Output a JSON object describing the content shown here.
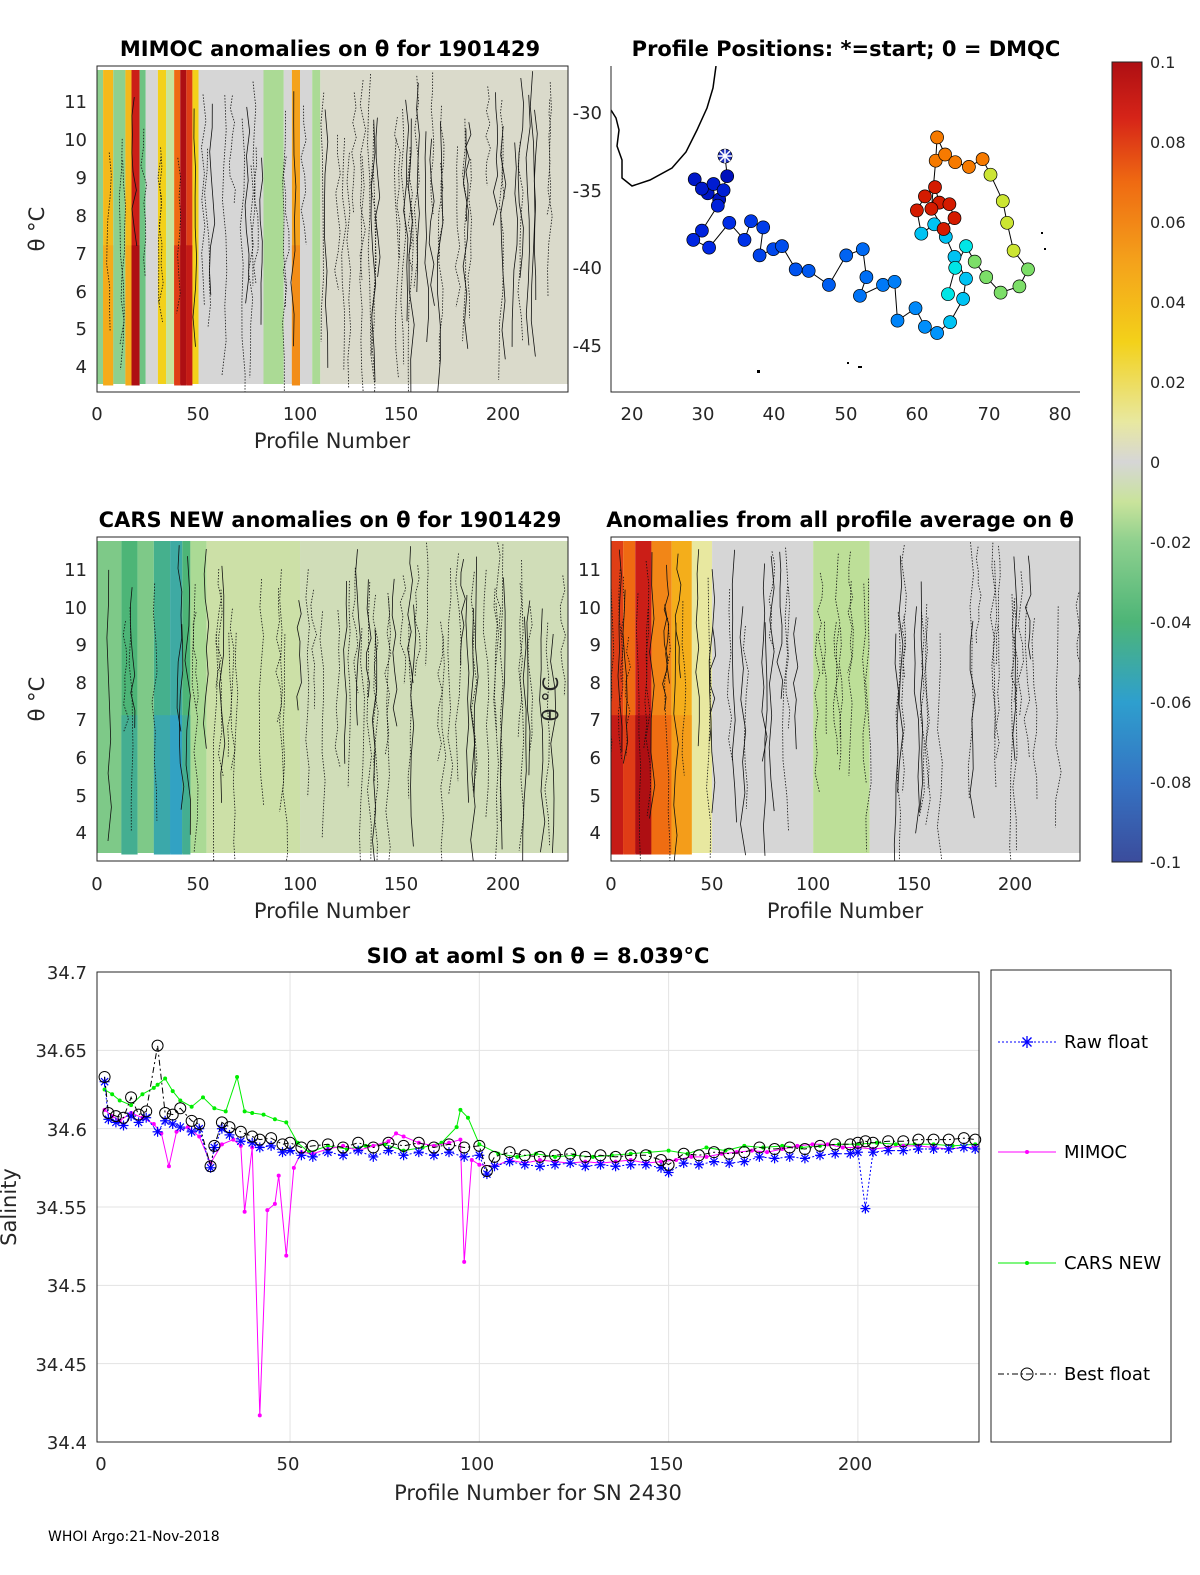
{
  "footer": "WHOI Argo:21-Nov-2018",
  "colorbar": {
    "ticks": [
      "0.1",
      "0.08",
      "0.06",
      "0.04",
      "0.02",
      "0",
      "-0.02",
      "-0.04",
      "-0.06",
      "-0.08",
      "-0.1"
    ],
    "range": [
      -0.1,
      0.1
    ]
  },
  "chart_data": [
    {
      "id": "mimoc",
      "type": "heatmap",
      "title": "MIMOC anomalies on θ  for 1901429",
      "xlabel": "Profile Number",
      "ylabel": "θ °C",
      "xlim": [
        0,
        232
      ],
      "ylim": [
        3.2,
        11.8
      ],
      "xticks": [
        "0",
        "50",
        "100",
        "150",
        "200"
      ],
      "yticks": [
        "4",
        "5",
        "6",
        "7",
        "8",
        "9",
        "10",
        "11"
      ],
      "bands": [
        {
          "x0": 0,
          "x1": 3,
          "v": -0.02
        },
        {
          "x0": 3,
          "x1": 8,
          "v": 0.04
        },
        {
          "x0": 8,
          "x1": 14,
          "v": -0.02
        },
        {
          "x0": 14,
          "x1": 17,
          "v": 0.04
        },
        {
          "x0": 17,
          "x1": 21,
          "v": 0.09
        },
        {
          "x0": 21,
          "x1": 24,
          "v": -0.03
        },
        {
          "x0": 24,
          "x1": 30,
          "v": 0.0
        },
        {
          "x0": 30,
          "x1": 34,
          "v": 0.03
        },
        {
          "x0": 34,
          "x1": 38,
          "v": -0.01
        },
        {
          "x0": 38,
          "x1": 41,
          "v": 0.07
        },
        {
          "x0": 41,
          "x1": 44,
          "v": 0.1
        },
        {
          "x0": 44,
          "x1": 47,
          "v": 0.08
        },
        {
          "x0": 47,
          "x1": 50,
          "v": 0.03
        },
        {
          "x0": 50,
          "x1": 82,
          "v": 0.0
        },
        {
          "x0": 82,
          "x1": 92,
          "v": -0.015
        },
        {
          "x0": 92,
          "x1": 96,
          "v": 0.0
        },
        {
          "x0": 96,
          "x1": 100,
          "v": 0.05
        },
        {
          "x0": 100,
          "x1": 106,
          "v": 0.0
        },
        {
          "x0": 106,
          "x1": 110,
          "v": -0.015
        },
        {
          "x0": 110,
          "x1": 232,
          "v": 0.002
        }
      ]
    },
    {
      "id": "positions",
      "type": "scatter",
      "title": "Profile Positions: *=start; 0 = DMQC",
      "xlim": [
        17,
        82
      ],
      "ylim": [
        -48,
        -27
      ],
      "xticks": [
        "20",
        "30",
        "40",
        "50",
        "60",
        "70",
        "80"
      ],
      "yticks": [
        "-30",
        "-35",
        "-40",
        "-45"
      ],
      "start": [
        32.8,
        -32.8
      ],
      "points": [
        [
          32.8,
          -32.8
        ],
        [
          33.1,
          -34.1
        ],
        [
          32.0,
          -35.6
        ],
        [
          30.4,
          -35.2
        ],
        [
          28.6,
          -34.3
        ],
        [
          29.6,
          -34.9
        ],
        [
          31.2,
          -34.6
        ],
        [
          32.6,
          -35.0
        ],
        [
          31.8,
          -36.0
        ],
        [
          29.6,
          -37.6
        ],
        [
          28.4,
          -38.2
        ],
        [
          30.6,
          -38.7
        ],
        [
          33.4,
          -37.1
        ],
        [
          35.5,
          -38.2
        ],
        [
          36.4,
          -37.0
        ],
        [
          38.1,
          -37.4
        ],
        [
          37.6,
          -39.2
        ],
        [
          39.5,
          -38.8
        ],
        [
          40.7,
          -38.6
        ],
        [
          42.6,
          -40.1
        ],
        [
          44.4,
          -40.2
        ],
        [
          47.2,
          -41.1
        ],
        [
          49.6,
          -39.2
        ],
        [
          51.9,
          -38.8
        ],
        [
          52.4,
          -40.6
        ],
        [
          51.5,
          -41.8
        ],
        [
          54.7,
          -41.1
        ],
        [
          56.3,
          -40.9
        ],
        [
          56.7,
          -43.4
        ],
        [
          59.2,
          -42.6
        ],
        [
          60.5,
          -43.8
        ],
        [
          62.2,
          -44.2
        ],
        [
          64.0,
          -43.5
        ],
        [
          65.8,
          -42.0
        ],
        [
          66.2,
          -40.7
        ],
        [
          64.6,
          -39.3
        ],
        [
          63.4,
          -38.0
        ],
        [
          61.8,
          -37.2
        ],
        [
          60.0,
          -37.8
        ],
        [
          59.4,
          -36.3
        ],
        [
          60.5,
          -35.4
        ],
        [
          61.9,
          -34.8
        ],
        [
          62.5,
          -35.8
        ],
        [
          63.9,
          -35.9
        ],
        [
          64.6,
          -36.8
        ],
        [
          63.1,
          -37.5
        ],
        [
          61.4,
          -36.2
        ],
        [
          62.0,
          -33.1
        ],
        [
          62.2,
          -31.6
        ],
        [
          63.3,
          -32.7
        ],
        [
          64.7,
          -33.2
        ],
        [
          66.6,
          -33.5
        ],
        [
          68.5,
          -33.0
        ],
        [
          69.6,
          -34.0
        ],
        [
          71.3,
          -35.7
        ],
        [
          71.9,
          -37.1
        ],
        [
          72.8,
          -38.9
        ],
        [
          74.8,
          -40.1
        ],
        [
          73.6,
          -41.2
        ],
        [
          71.0,
          -41.6
        ],
        [
          69.0,
          -40.6
        ],
        [
          67.4,
          -39.6
        ],
        [
          66.2,
          -38.6
        ],
        [
          64.7,
          -40.0
        ],
        [
          63.7,
          -41.7
        ]
      ]
    },
    {
      "id": "cars",
      "type": "heatmap",
      "title": "CARS NEW anomalies on θ for 1901429",
      "xlabel": "Profile Number",
      "ylabel": "θ °C",
      "xlim": [
        0,
        232
      ],
      "ylim": [
        3.2,
        11.8
      ],
      "xticks": [
        "0",
        "50",
        "100",
        "150",
        "200"
      ],
      "yticks": [
        "4",
        "5",
        "6",
        "7",
        "8",
        "9",
        "10",
        "11"
      ],
      "bands": [
        {
          "x0": 0,
          "x1": 12,
          "v": -0.025
        },
        {
          "x0": 12,
          "x1": 20,
          "v": -0.04
        },
        {
          "x0": 20,
          "x1": 28,
          "v": -0.025
        },
        {
          "x0": 28,
          "x1": 36,
          "v": -0.045
        },
        {
          "x0": 36,
          "x1": 42,
          "v": -0.05
        },
        {
          "x0": 42,
          "x1": 46,
          "v": -0.04
        },
        {
          "x0": 46,
          "x1": 54,
          "v": -0.015
        },
        {
          "x0": 54,
          "x1": 100,
          "v": -0.008
        },
        {
          "x0": 100,
          "x1": 232,
          "v": -0.005
        }
      ]
    },
    {
      "id": "allavg",
      "type": "heatmap",
      "title": "Anomalies from all profile average on θ",
      "xlabel": "Profile Number",
      "ylabel": "θ °C",
      "xlim": [
        0,
        232
      ],
      "ylim": [
        3.2,
        11.8
      ],
      "xticks": [
        "0",
        "50",
        "100",
        "150",
        "200"
      ],
      "yticks": [
        "4",
        "5",
        "6",
        "7",
        "8",
        "9",
        "10",
        "11"
      ],
      "bands": [
        {
          "x0": 0,
          "x1": 6,
          "v": 0.08
        },
        {
          "x0": 6,
          "x1": 12,
          "v": 0.07
        },
        {
          "x0": 12,
          "x1": 20,
          "v": 0.09
        },
        {
          "x0": 20,
          "x1": 30,
          "v": 0.06
        },
        {
          "x0": 30,
          "x1": 40,
          "v": 0.045
        },
        {
          "x0": 40,
          "x1": 50,
          "v": 0.01
        },
        {
          "x0": 50,
          "x1": 100,
          "v": 0.0
        },
        {
          "x0": 100,
          "x1": 128,
          "v": -0.012
        },
        {
          "x0": 128,
          "x1": 232,
          "v": 0.0
        }
      ]
    },
    {
      "id": "salinity",
      "type": "line",
      "title": "SIO at aoml S on θ = 8.039°C",
      "xlabel": "Profile Number for SN 2430",
      "ylabel": "Salinity",
      "xlim": [
        -1,
        232
      ],
      "ylim": [
        34.4,
        34.7
      ],
      "xticks": [
        "0",
        "50",
        "100",
        "150",
        "200"
      ],
      "yticks": [
        "34.7",
        "34.65",
        "34.6",
        "34.55",
        "34.5",
        "34.45",
        "34.4"
      ],
      "legend": [
        "Raw float",
        "MIMOC",
        "CARS NEW",
        "Best float"
      ],
      "series": [
        {
          "name": "Raw float",
          "x": [
            1,
            2,
            4,
            6,
            8,
            10,
            12,
            15,
            17,
            19,
            21,
            24,
            26,
            29,
            30,
            32,
            34,
            37,
            40,
            42,
            45,
            48,
            50,
            53,
            56,
            60,
            64,
            68,
            72,
            76,
            80,
            84,
            88,
            92,
            96,
            100,
            102,
            104,
            108,
            112,
            116,
            120,
            124,
            128,
            132,
            136,
            140,
            144,
            148,
            150,
            154,
            158,
            162,
            166,
            170,
            174,
            178,
            182,
            186,
            190,
            194,
            198,
            200,
            202,
            204,
            208,
            212,
            216,
            220,
            224,
            228,
            231
          ],
          "y": [
            34.63,
            34.606,
            34.604,
            34.602,
            34.608,
            34.604,
            34.607,
            34.598,
            34.605,
            34.603,
            34.601,
            34.598,
            34.6,
            34.575,
            34.588,
            34.6,
            34.596,
            34.592,
            34.591,
            34.588,
            34.589,
            34.585,
            34.586,
            34.583,
            34.582,
            34.585,
            34.583,
            34.586,
            34.582,
            34.586,
            34.583,
            34.585,
            34.583,
            34.585,
            34.582,
            34.583,
            34.571,
            34.576,
            34.579,
            34.577,
            34.576,
            34.577,
            34.578,
            34.576,
            34.577,
            34.576,
            34.577,
            34.577,
            34.575,
            34.572,
            34.578,
            34.577,
            34.579,
            34.578,
            34.579,
            34.582,
            34.581,
            34.582,
            34.581,
            34.583,
            34.584,
            34.584,
            34.585,
            34.549,
            34.585,
            34.586,
            34.586,
            34.587,
            34.587,
            34.587,
            34.588,
            34.587
          ]
        },
        {
          "name": "MIMOC",
          "x": [
            1,
            3,
            5,
            8,
            11,
            14,
            16,
            18,
            20,
            23,
            26,
            29,
            32,
            35,
            37,
            38,
            40,
            42,
            44,
            46,
            47,
            49,
            51,
            53,
            56,
            60,
            64,
            68,
            72,
            76,
            78,
            80,
            84,
            88,
            92,
            95,
            96,
            98,
            100,
            104,
            108,
            112,
            116,
            120,
            124,
            128,
            132,
            136,
            140,
            144,
            148,
            152,
            156,
            160,
            164,
            168,
            172,
            176,
            180,
            184,
            188,
            192,
            196,
            200,
            204,
            208,
            212,
            216,
            220,
            224,
            228,
            231
          ],
          "y": [
            34.612,
            34.608,
            34.605,
            34.61,
            34.607,
            34.603,
            34.597,
            34.576,
            34.598,
            34.601,
            34.595,
            34.578,
            34.59,
            34.593,
            34.589,
            34.547,
            34.588,
            34.417,
            34.548,
            34.552,
            34.57,
            34.519,
            34.575,
            34.585,
            34.584,
            34.587,
            34.589,
            34.586,
            34.589,
            34.592,
            34.597,
            34.595,
            34.591,
            34.589,
            34.591,
            34.593,
            34.515,
            34.58,
            34.577,
            34.576,
            34.58,
            34.578,
            34.58,
            34.579,
            34.578,
            34.579,
            34.578,
            34.579,
            34.58,
            34.578,
            34.579,
            34.58,
            34.582,
            34.582,
            34.584,
            34.585,
            34.586,
            34.585,
            34.587,
            34.589,
            34.59,
            34.59,
            34.588,
            34.588,
            34.587,
            34.588,
            34.589,
            34.589,
            34.588,
            34.587,
            34.588,
            34.588
          ]
        },
        {
          "name": "CARS NEW",
          "x": [
            1,
            3,
            5,
            8,
            11,
            14,
            15,
            17,
            19,
            21,
            24,
            27,
            30,
            33,
            36,
            38,
            40,
            43,
            46,
            49,
            52,
            55,
            60,
            65,
            70,
            75,
            80,
            85,
            90,
            94,
            95,
            97,
            100,
            105,
            110,
            115,
            120,
            125,
            130,
            135,
            140,
            145,
            150,
            155,
            160,
            165,
            170,
            175,
            180,
            185,
            190,
            195,
            200,
            205,
            210,
            215,
            220,
            225,
            231
          ],
          "y": [
            34.625,
            34.622,
            34.618,
            34.615,
            34.622,
            34.626,
            34.628,
            34.632,
            34.624,
            34.618,
            34.614,
            34.62,
            34.613,
            34.611,
            34.633,
            34.611,
            34.61,
            34.609,
            34.606,
            34.604,
            34.591,
            34.585,
            34.589,
            34.587,
            34.589,
            34.59,
            34.586,
            34.588,
            34.591,
            34.601,
            34.612,
            34.607,
            34.59,
            34.584,
            34.582,
            34.584,
            34.582,
            34.583,
            34.582,
            34.583,
            34.584,
            34.585,
            34.586,
            34.584,
            34.588,
            34.586,
            34.589,
            34.588,
            34.589,
            34.588,
            34.589,
            34.59,
            34.59,
            34.591,
            34.59,
            34.59,
            34.59,
            34.589,
            34.59
          ]
        },
        {
          "name": "Best float",
          "x": [
            1,
            2,
            4,
            6,
            8,
            10,
            12,
            15,
            17,
            19,
            21,
            24,
            26,
            29,
            30,
            32,
            34,
            37,
            40,
            42,
            45,
            48,
            50,
            53,
            56,
            60,
            64,
            68,
            72,
            76,
            80,
            84,
            88,
            92,
            96,
            100,
            102,
            104,
            108,
            112,
            116,
            120,
            124,
            128,
            132,
            136,
            140,
            144,
            148,
            150,
            154,
            158,
            162,
            166,
            170,
            174,
            178,
            182,
            186,
            190,
            194,
            198,
            200,
            202,
            204,
            208,
            212,
            216,
            220,
            224,
            228,
            231
          ],
          "y": [
            34.633,
            34.61,
            34.608,
            34.607,
            34.62,
            34.609,
            34.611,
            34.653,
            34.61,
            34.609,
            34.613,
            34.605,
            34.603,
            34.576,
            34.589,
            34.604,
            34.601,
            34.598,
            34.595,
            34.593,
            34.594,
            34.59,
            34.591,
            34.588,
            34.589,
            34.59,
            34.588,
            34.591,
            34.588,
            34.591,
            34.589,
            34.591,
            34.588,
            34.59,
            34.588,
            34.589,
            34.573,
            34.582,
            34.585,
            34.583,
            34.582,
            34.583,
            34.584,
            34.582,
            34.583,
            34.582,
            34.583,
            34.583,
            34.58,
            34.577,
            34.584,
            34.583,
            34.585,
            34.584,
            34.585,
            34.588,
            34.587,
            34.588,
            34.587,
            34.589,
            34.59,
            34.59,
            34.591,
            34.592,
            34.591,
            34.592,
            34.592,
            34.593,
            34.593,
            34.593,
            34.594,
            34.593
          ]
        }
      ]
    }
  ]
}
